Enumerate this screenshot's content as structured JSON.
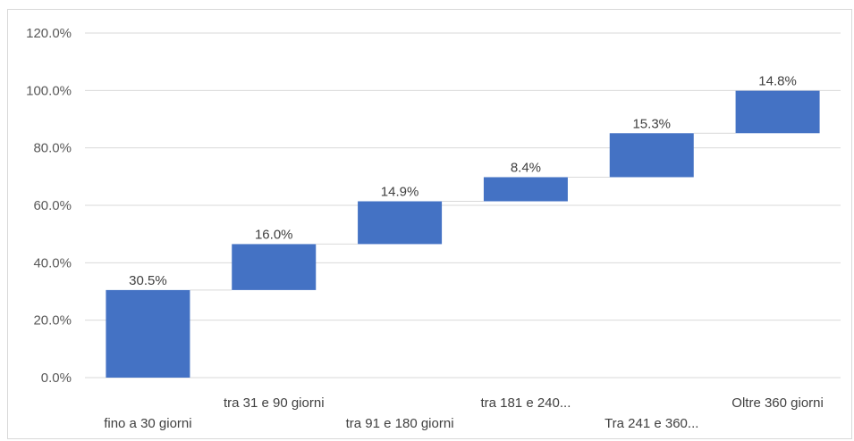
{
  "chart_data": {
    "type": "bar",
    "subtype": "waterfall",
    "title": "",
    "xlabel": "",
    "ylabel": "",
    "categories": [
      "fino a 30 giorni",
      "tra 31 e 90 giorni",
      "tra 91 e 180 giorni",
      "tra 181 e 240...",
      "Tra 241 e 360...",
      "Oltre 360 giorni"
    ],
    "values": [
      30.5,
      16.0,
      14.9,
      8.4,
      15.3,
      14.8
    ],
    "value_labels": [
      "30.5%",
      "16.0%",
      "14.9%",
      "8.4%",
      "15.3%",
      "14.8%"
    ],
    "ylim": [
      0,
      120
    ],
    "yticks": [
      0,
      20,
      40,
      60,
      80,
      100,
      120
    ],
    "ytick_labels": [
      "0.0%",
      "20.0%",
      "40.0%",
      "60.0%",
      "80.0%",
      "100.0%",
      "120.0%"
    ],
    "grid": true,
    "legend": "none",
    "colors": {
      "bar": "#4472C4",
      "grid": "#d9d9d9",
      "connector": "#d9d9d9"
    }
  }
}
